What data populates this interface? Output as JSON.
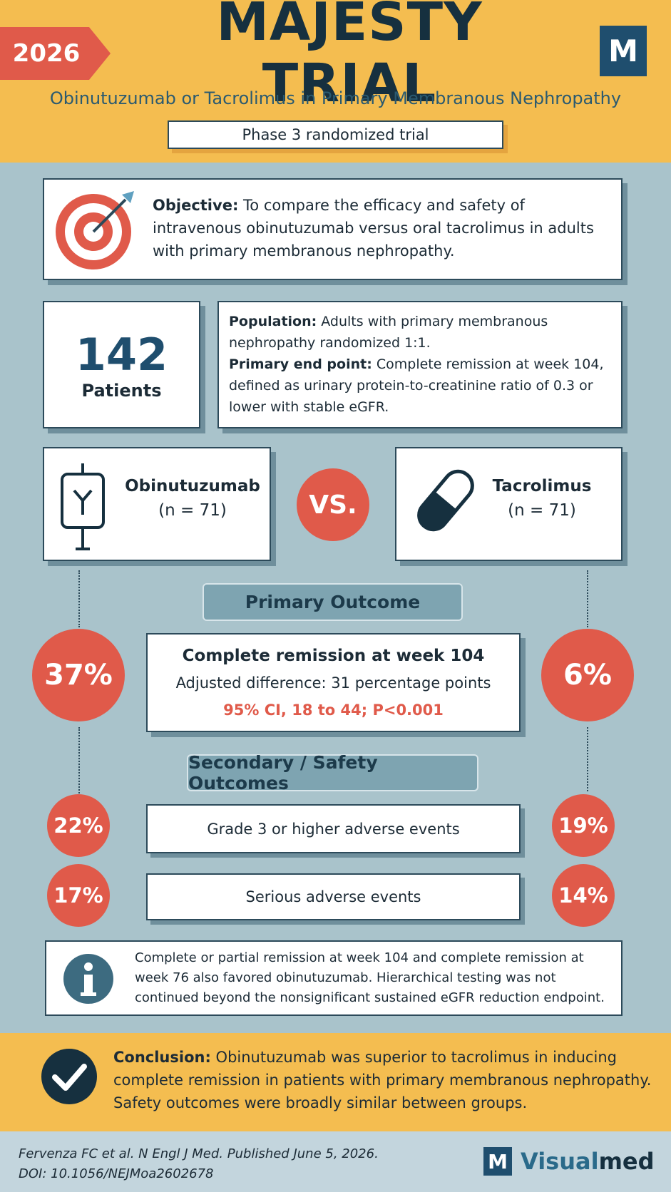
{
  "header": {
    "year": "2026",
    "title": "MAJESTY TRIAL",
    "logo": "M",
    "subtitle": "Obinutuzumab or Tacrolimus in Primary Membranous Nephropathy",
    "design": "Phase 3 randomized trial"
  },
  "objective": {
    "label": "Objective:",
    "text": "To compare the efficacy and safety of intravenous obinutuzumab versus oral tacrolimus in adults with primary membranous nephropathy."
  },
  "patients": {
    "count": 142,
    "label": "Patients"
  },
  "population": {
    "label": "Population:",
    "text": "Adults with primary membranous nephropathy randomized 1:1."
  },
  "endpoint": {
    "label": "Primary end point:",
    "text": "Complete remission at week 104, defined as urinary protein-to-creatinine ratio of 0.3 or lower with stable eGFR."
  },
  "arms": [
    {
      "name": "Obinutuzumab",
      "n": "(n = 71)"
    },
    {
      "name": "Tacrolimus",
      "n": "(n = 71)"
    }
  ],
  "vs": "VS.",
  "primary": {
    "heading": "Primary Outcome",
    "title": "Complete remission at week 104",
    "difference": "Adjusted difference: 31 percentage points",
    "ci": "95% CI, 18 to 44; P<0.001",
    "left": "37%",
    "right": "6%"
  },
  "secondary": {
    "heading": "Secondary / Safety Outcomes",
    "rows": [
      {
        "label": "Grade 3 or higher adverse events",
        "left": "22%",
        "right": "19%"
      },
      {
        "label": "Serious adverse events",
        "left": "17%",
        "right": "14%"
      }
    ]
  },
  "note": "Complete or partial remission at week 104 and complete remission at week 76 also favored obinutuzumab. Hierarchical testing was not continued beyond the nonsignificant sustained eGFR reduction endpoint.",
  "conclusion": {
    "label": "Conclusion:",
    "text": "Obinutuzumab was superior to tacrolimus in inducing complete remission in patients with primary membranous nephropathy. Safety outcomes were broadly similar between groups."
  },
  "footer": {
    "citation": "Fervenza FC et al. N Engl J Med. Published June 5, 2026.",
    "doi": "DOI: 10.1056/NEJMoa2602678",
    "brand_logo": "M",
    "brand_a": "Visual",
    "brand_b": "med"
  }
}
